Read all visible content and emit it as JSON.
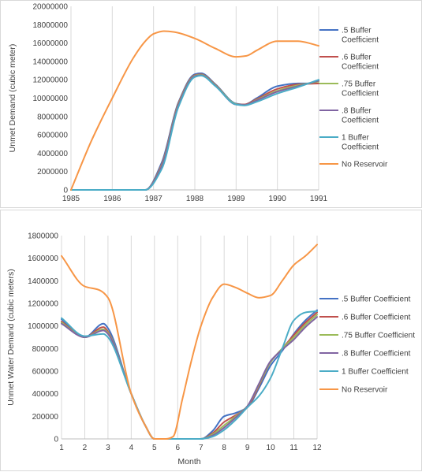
{
  "chart_data": [
    {
      "type": "line",
      "title": "",
      "xlabel": "",
      "ylabel": "Unmet Demand (cubic meter)",
      "xlim": [
        1985,
        1991
      ],
      "ylim": [
        0,
        20000000
      ],
      "x_ticks": [
        "1985",
        "1986",
        "1987",
        "1988",
        "1989",
        "1990",
        "1991"
      ],
      "y_ticks": [
        "0",
        "2000000",
        "4000000",
        "6000000",
        "8000000",
        "10000000",
        "12000000",
        "14000000",
        "16000000",
        "18000000",
        "20000000"
      ],
      "grid": "vertical",
      "legend_position": "right",
      "series": [
        {
          "name": ".5 Buffer Coefficient",
          "color": "#4472c4",
          "x": [
            1985,
            1986,
            1986.8,
            1987.2,
            1987.6,
            1988,
            1988.15,
            1988.5,
            1989,
            1989.2,
            1989.5,
            1990,
            1990.5,
            1991
          ],
          "y": [
            0,
            0,
            0,
            3000000,
            9500000,
            12600000,
            12700000,
            11500000,
            9400000,
            9300000,
            10000000,
            11300000,
            11600000,
            11600000
          ]
        },
        {
          "name": ".6 Buffer Coefficient",
          "color": "#c0504d",
          "x": [
            1985,
            1986,
            1986.8,
            1987.2,
            1987.6,
            1988,
            1988.15,
            1988.5,
            1989,
            1989.2,
            1989.5,
            1990,
            1990.5,
            1991
          ],
          "y": [
            0,
            0,
            0,
            2800000,
            9400000,
            12500000,
            12600000,
            11450000,
            9350000,
            9300000,
            9900000,
            11000000,
            11500000,
            11600000
          ]
        },
        {
          "name": ".75 Buffer Coefficient",
          "color": "#9bbb59",
          "x": [
            1985,
            1986,
            1986.8,
            1987.2,
            1987.6,
            1988,
            1988.15,
            1988.5,
            1989,
            1989.2,
            1989.5,
            1990,
            1990.5,
            1991
          ],
          "y": [
            0,
            0,
            0,
            2700000,
            9300000,
            12450000,
            12550000,
            11400000,
            9350000,
            9250000,
            9800000,
            10800000,
            11400000,
            11800000
          ]
        },
        {
          "name": ".8 Buffer Coefficient",
          "color": "#8064a2",
          "x": [
            1985,
            1986,
            1986.8,
            1987.2,
            1987.6,
            1988,
            1988.15,
            1988.5,
            1989,
            1989.2,
            1989.5,
            1990,
            1990.5,
            1991
          ],
          "y": [
            0,
            0,
            0,
            2600000,
            9200000,
            12400000,
            12500000,
            11350000,
            9300000,
            9250000,
            9750000,
            10700000,
            11300000,
            11900000
          ]
        },
        {
          "name": "1 Buffer Coefficient",
          "color": "#4bacc6",
          "x": [
            1985,
            1986,
            1986.8,
            1987.2,
            1987.6,
            1988,
            1988.15,
            1988.5,
            1989,
            1989.2,
            1989.5,
            1990,
            1990.5,
            1991
          ],
          "y": [
            0,
            0,
            0,
            2300000,
            9000000,
            12300000,
            12450000,
            11300000,
            9300000,
            9200000,
            9600000,
            10500000,
            11200000,
            12000000
          ]
        },
        {
          "name": "No Reservoir",
          "color": "#f79646",
          "x": [
            1985,
            1985.5,
            1986,
            1986.5,
            1986.8,
            1987,
            1987.25,
            1987.5,
            1988,
            1988.5,
            1989,
            1989.25,
            1989.5,
            1990,
            1990.5,
            1991
          ],
          "y": [
            0,
            5400000,
            10000000,
            14300000,
            16200000,
            17000000,
            17300000,
            17200000,
            16500000,
            15400000,
            14500000,
            14600000,
            15200000,
            16200000,
            16200000,
            15700000
          ]
        }
      ]
    },
    {
      "type": "line",
      "title": "",
      "xlabel": "Month",
      "ylabel": "Unmet Water Demand (cubic meters)",
      "xlim": [
        1,
        12
      ],
      "ylim": [
        0,
        1800000
      ],
      "x_ticks": [
        "1",
        "2",
        "3",
        "4",
        "5",
        "6",
        "7",
        "8",
        "9",
        "10",
        "11",
        "12"
      ],
      "y_ticks": [
        "0",
        "200000",
        "400000",
        "600000",
        "800000",
        "1000000",
        "1200000",
        "1400000",
        "1600000",
        "1800000"
      ],
      "grid": "vertical",
      "legend_position": "right",
      "series": [
        {
          "name": ".5 Buffer Coefficient",
          "color": "#4472c4",
          "x": [
            1,
            2,
            2.8,
            3,
            4,
            4.6,
            5,
            5.5,
            6,
            6.5,
            7,
            7.5,
            8,
            8.5,
            9,
            9.5,
            10,
            10.5,
            11,
            11.5,
            12
          ],
          "y": [
            1060000,
            900000,
            1020000,
            980000,
            400000,
            120000,
            0,
            0,
            0,
            0,
            0,
            70000,
            200000,
            230000,
            280000,
            450000,
            650000,
            780000,
            930000,
            1050000,
            1140000
          ]
        },
        {
          "name": ".6 Buffer Coefficient",
          "color": "#c0504d",
          "x": [
            1,
            2,
            2.8,
            3,
            4,
            4.6,
            5,
            5.5,
            6,
            6.5,
            7,
            7.5,
            8,
            8.5,
            9,
            9.5,
            10,
            10.5,
            11,
            11.5,
            12
          ],
          "y": [
            1040000,
            900000,
            990000,
            950000,
            400000,
            120000,
            0,
            0,
            0,
            0,
            0,
            50000,
            150000,
            210000,
            280000,
            470000,
            680000,
            800000,
            920000,
            1030000,
            1120000
          ]
        },
        {
          "name": ".75 Buffer Coefficient",
          "color": "#9bbb59",
          "x": [
            1,
            2,
            2.8,
            3,
            4,
            4.6,
            5,
            5.5,
            6,
            6.5,
            7,
            7.5,
            8,
            8.5,
            9,
            9.5,
            10,
            10.5,
            11,
            11.5,
            12
          ],
          "y": [
            1030000,
            900000,
            970000,
            940000,
            400000,
            120000,
            0,
            0,
            0,
            0,
            0,
            40000,
            120000,
            200000,
            290000,
            480000,
            680000,
            800000,
            900000,
            1010000,
            1100000
          ]
        },
        {
          "name": ".8 Buffer Coefficient",
          "color": "#8064a2",
          "x": [
            1,
            2,
            2.8,
            3,
            4,
            4.6,
            5,
            5.5,
            6,
            6.5,
            7,
            7.5,
            8,
            8.5,
            9,
            9.5,
            10,
            10.5,
            11,
            11.5,
            12
          ],
          "y": [
            1020000,
            900000,
            960000,
            930000,
            400000,
            120000,
            0,
            0,
            0,
            0,
            0,
            30000,
            100000,
            190000,
            290000,
            490000,
            690000,
            790000,
            880000,
            990000,
            1080000
          ]
        },
        {
          "name": "1 Buffer Coefficient",
          "color": "#4bacc6",
          "x": [
            1,
            2,
            2.8,
            3,
            4,
            4.6,
            5,
            5.5,
            6,
            6.5,
            7,
            7.5,
            8,
            8.5,
            9,
            9.5,
            10,
            10.5,
            11,
            11.5,
            12
          ],
          "y": [
            1070000,
            910000,
            930000,
            900000,
            400000,
            120000,
            0,
            0,
            0,
            0,
            0,
            20000,
            80000,
            170000,
            280000,
            380000,
            540000,
            800000,
            1050000,
            1120000,
            1130000
          ]
        },
        {
          "name": "No Reservoir",
          "color": "#f79646",
          "x": [
            1,
            2,
            2.6,
            3,
            4,
            4.6,
            5,
            5.5,
            5.8,
            6.2,
            6.6,
            7,
            7.5,
            8,
            8.5,
            9,
            9.5,
            10,
            10.5,
            11,
            11.5,
            12
          ],
          "y": [
            1620000,
            1350000,
            1320000,
            1250000,
            400000,
            120000,
            0,
            0,
            20000,
            350000,
            700000,
            1000000,
            1250000,
            1370000,
            1340000,
            1290000,
            1250000,
            1270000,
            1400000,
            1540000,
            1620000,
            1720000
          ]
        }
      ]
    }
  ]
}
